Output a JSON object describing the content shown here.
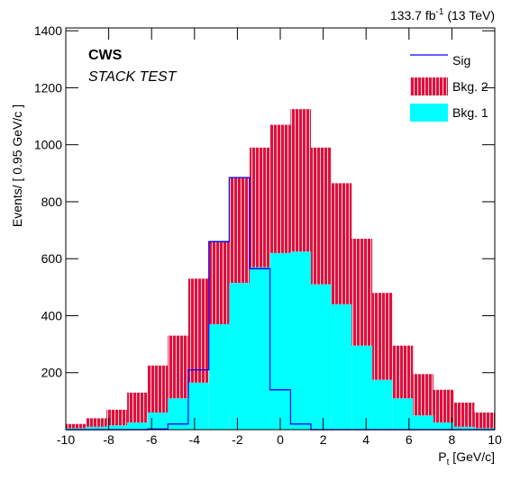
{
  "chart_data": {
    "type": "histogram",
    "lumi": {
      "text": "133.7 fb",
      "sup": "-1",
      "suffix": " (13 TeV)"
    },
    "label_bold": "CWS",
    "label_italic": "STACK TEST",
    "ylabel": "Events/ [ 0.95 GeV/c ]",
    "xlabel": {
      "main": "P",
      "sub": "t",
      "unit": " [GeV/c]"
    },
    "bins": [
      -10,
      -9.05,
      -8.1,
      -7.14,
      -6.19,
      -5.24,
      -4.29,
      -3.33,
      -2.38,
      -1.43,
      -0.48,
      0.48,
      1.43,
      2.38,
      3.33,
      4.29,
      5.24,
      6.19,
      7.14,
      8.1,
      9.05,
      10
    ],
    "series": [
      {
        "name": "Bkg. 1",
        "color": "#00ffff",
        "stacked": true,
        "values": [
          5,
          10,
          15,
          25,
          60,
          110,
          165,
          370,
          515,
          570,
          620,
          625,
          510,
          440,
          295,
          175,
          110,
          50,
          25,
          10,
          5
        ]
      },
      {
        "name": "Bkg. 2",
        "color": "#e0103c",
        "stacked": true,
        "hatched": true,
        "values": [
          15,
          30,
          55,
          105,
          165,
          220,
          365,
          290,
          370,
          420,
          450,
          500,
          480,
          425,
          375,
          305,
          185,
          145,
          115,
          85,
          55
        ]
      },
      {
        "name": "Sig",
        "color": "#0000ff",
        "stacked": false,
        "values": [
          0,
          0,
          0,
          0,
          2,
          20,
          210,
          660,
          885,
          565,
          140,
          20,
          0,
          0,
          0,
          0,
          0,
          0,
          0,
          0,
          0
        ]
      }
    ],
    "legend_order": [
      2,
      1,
      0
    ],
    "legend": "upper right",
    "xlim": [
      -10,
      10
    ],
    "ylim": [
      0,
      1410
    ],
    "xticks": [
      -10,
      -8,
      -6,
      -4,
      -2,
      0,
      2,
      4,
      6,
      8,
      10
    ],
    "yticks": [
      200,
      400,
      600,
      800,
      1000,
      1200,
      1400
    ]
  }
}
